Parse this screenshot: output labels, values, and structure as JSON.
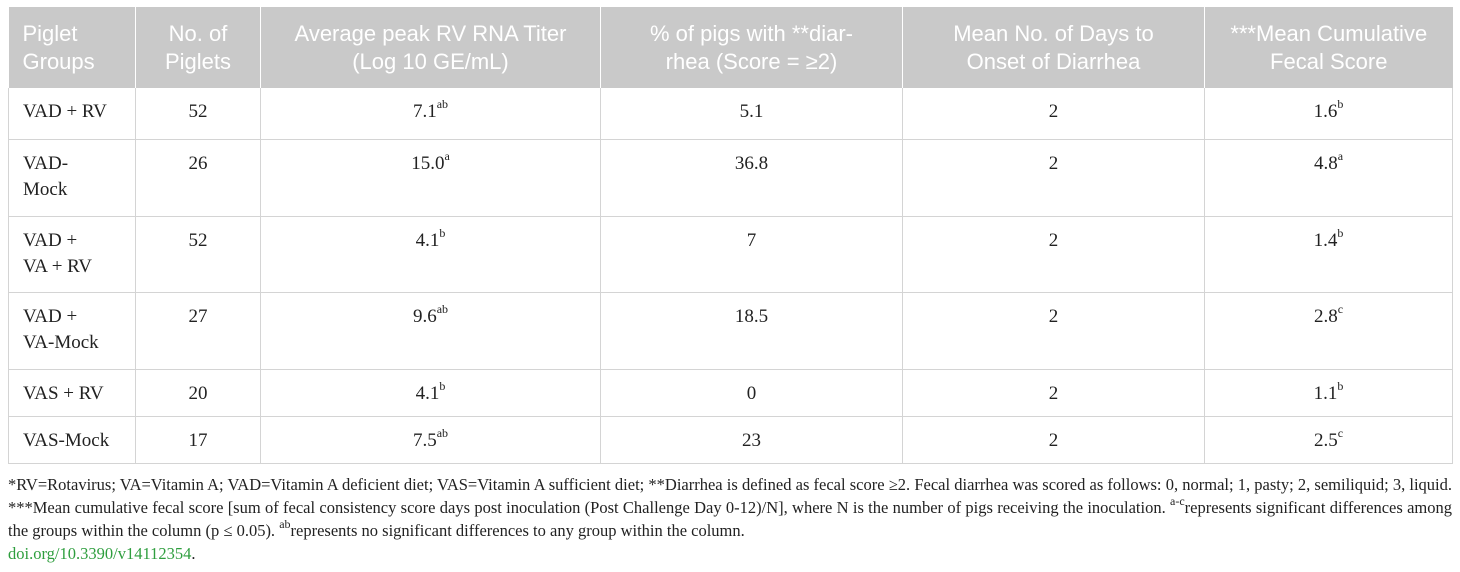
{
  "table": {
    "headers": [
      [
        "Piglet",
        "Groups"
      ],
      [
        "No. of",
        "Piglets"
      ],
      [
        "Average peak RV RNA Titer",
        "(Log 10 GE/mL)"
      ],
      [
        "% of pigs with **diar-",
        "rhea (Score = ≥2)"
      ],
      [
        "Mean No. of Days to",
        "Onset of Diarrhea"
      ],
      [
        "***Mean Cumulative",
        "Fecal Score"
      ]
    ],
    "rows": [
      {
        "group": [
          "VAD + RV"
        ],
        "n": "52",
        "titer": "7.1",
        "titer_sup": "ab",
        "pct": "5.1",
        "days": "2",
        "score": "1.6",
        "score_sup": "b"
      },
      {
        "group": [
          "VAD-",
          "Mock"
        ],
        "n": "26",
        "titer": "15.0",
        "titer_sup": "a",
        "pct": "36.8",
        "days": "2",
        "score": "4.8",
        "score_sup": "a"
      },
      {
        "group": [
          "VAD +",
          "VA + RV"
        ],
        "n": "52",
        "titer": "4.1",
        "titer_sup": "b",
        "pct": "7",
        "days": "2",
        "score": "1.4",
        "score_sup": "b"
      },
      {
        "group": [
          "VAD +",
          "VA-Mock"
        ],
        "n": "27",
        "titer": "9.6",
        "titer_sup": "ab",
        "pct": "18.5",
        "days": "2",
        "score": "2.8",
        "score_sup": "c"
      },
      {
        "group": [
          "VAS + RV"
        ],
        "n": "20",
        "titer": "4.1",
        "titer_sup": "b",
        "pct": "0",
        "days": "2",
        "score": "1.1",
        "score_sup": "b"
      },
      {
        "group": [
          "VAS-Mock"
        ],
        "n": "17",
        "titer": "7.5",
        "titer_sup": "ab",
        "pct": "23",
        "days": "2",
        "score": "2.5",
        "score_sup": "c"
      }
    ]
  },
  "footnote": {
    "text1": "*RV=Rotavirus; VA=Vitamin A; VAD=Vitamin A deficient diet; VAS=Vitamin A sufficient diet; **Diarrhea is defined as fecal score ≥2. Fecal diarrhea was scored as follows: 0, normal; 1, pasty; 2, semiliquid; 3, liquid. ***Mean cumulative fecal score [sum of fecal consistency score days post inoculation (Post Challenge Day 0-12)/N], where N is the number of pigs receiving the inoculation. ",
    "sup1": "a-c",
    "text2": "represents significant differences among the groups within the column (p ≤ 0.05). ",
    "sup2": "ab",
    "text3": "represents no significant differences to any group within the column.",
    "doi": "doi.org/10.3390/v14112354",
    "doi_suffix": "."
  },
  "colors": {
    "header_bg": "#c9c9c9",
    "header_text": "#ffffff",
    "link": "#2e9e3e"
  }
}
